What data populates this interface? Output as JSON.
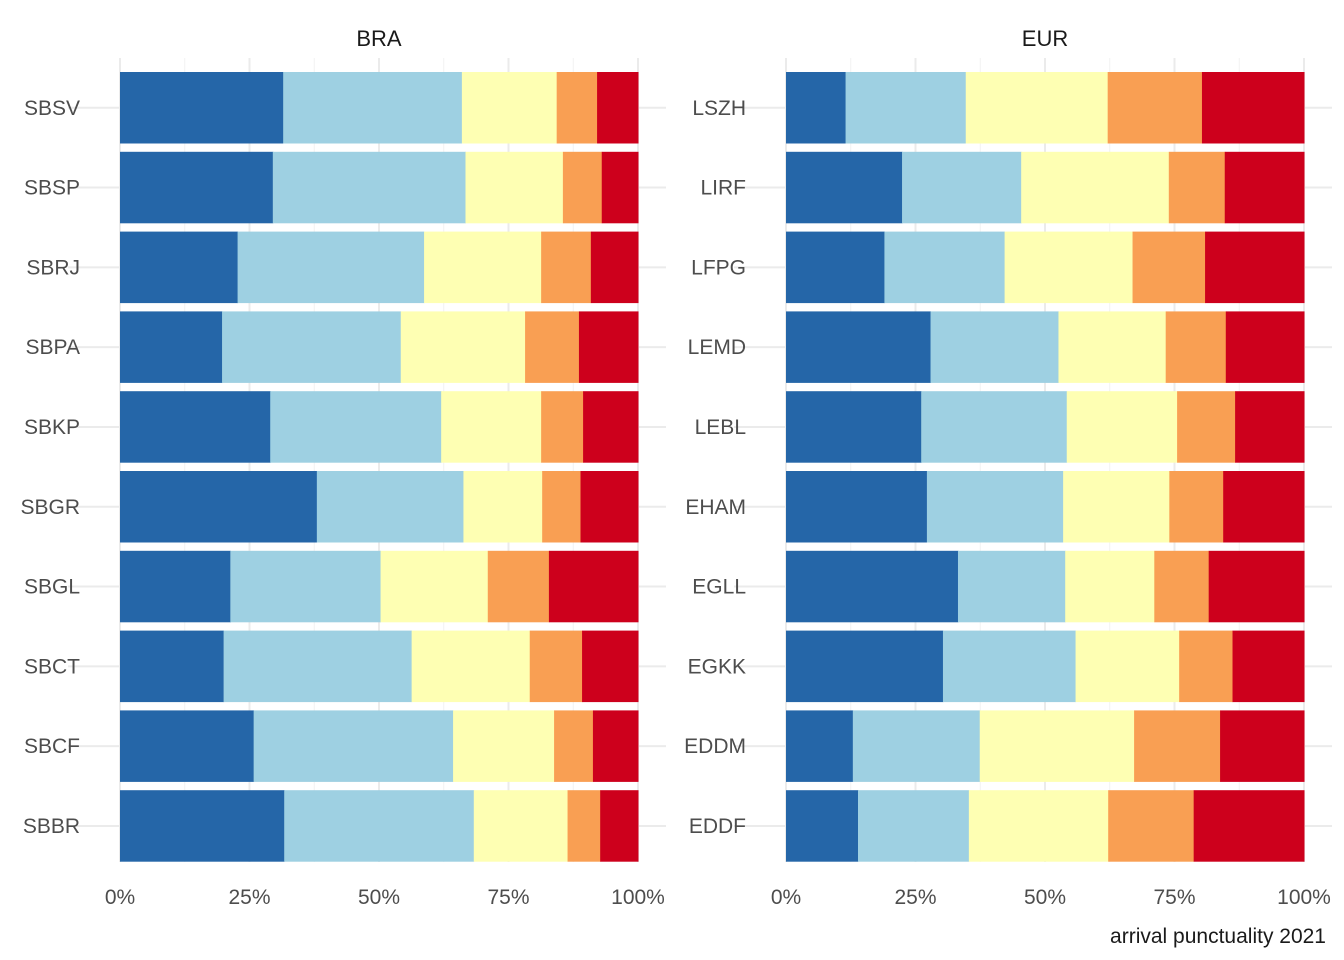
{
  "chart_data": {
    "type": "bar",
    "orientation": "horizontal",
    "stacked": "percent",
    "caption": "arrival punctuality 2021",
    "x_ticks": [
      "0%",
      "25%",
      "50%",
      "75%",
      "100%"
    ],
    "xlim": [
      0,
      1
    ],
    "grid": true,
    "legend": "none",
    "band_colors": [
      "#2566a8",
      "#9ed0e2",
      "#feffb3",
      "#f99f53",
      "#cd001c"
    ],
    "panels": [
      {
        "title": "BRA",
        "categories": [
          "SBSV",
          "SBSP",
          "SBRJ",
          "SBPA",
          "SBKP",
          "SBGR",
          "SBGL",
          "SBCT",
          "SBCF",
          "SBBR"
        ],
        "shares": [
          [
            0.315,
            0.345,
            0.183,
            0.078,
            0.079
          ],
          [
            0.295,
            0.372,
            0.188,
            0.075,
            0.07
          ],
          [
            0.227,
            0.36,
            0.226,
            0.096,
            0.091
          ],
          [
            0.197,
            0.345,
            0.24,
            0.104,
            0.114
          ],
          [
            0.29,
            0.33,
            0.193,
            0.081,
            0.106
          ],
          [
            0.38,
            0.283,
            0.152,
            0.074,
            0.111
          ],
          [
            0.213,
            0.29,
            0.207,
            0.118,
            0.172
          ],
          [
            0.2,
            0.363,
            0.228,
            0.101,
            0.108
          ],
          [
            0.258,
            0.385,
            0.195,
            0.075,
            0.087
          ],
          [
            0.317,
            0.366,
            0.181,
            0.063,
            0.073
          ]
        ]
      },
      {
        "title": "EUR",
        "categories": [
          "LSZH",
          "LIRF",
          "LFPG",
          "LEMD",
          "LEBL",
          "EHAM",
          "EGLL",
          "EGKK",
          "EDDM",
          "EDDF"
        ],
        "shares": [
          [
            0.115,
            0.232,
            0.274,
            0.182,
            0.197
          ],
          [
            0.224,
            0.23,
            0.285,
            0.108,
            0.153
          ],
          [
            0.19,
            0.232,
            0.247,
            0.14,
            0.191
          ],
          [
            0.279,
            0.247,
            0.207,
            0.116,
            0.151
          ],
          [
            0.261,
            0.281,
            0.213,
            0.112,
            0.133
          ],
          [
            0.272,
            0.263,
            0.205,
            0.104,
            0.156
          ],
          [
            0.332,
            0.207,
            0.172,
            0.105,
            0.184
          ],
          [
            0.303,
            0.256,
            0.2,
            0.103,
            0.138
          ],
          [
            0.129,
            0.245,
            0.298,
            0.166,
            0.162
          ],
          [
            0.139,
            0.214,
            0.269,
            0.165,
            0.213
          ]
        ]
      }
    ]
  }
}
